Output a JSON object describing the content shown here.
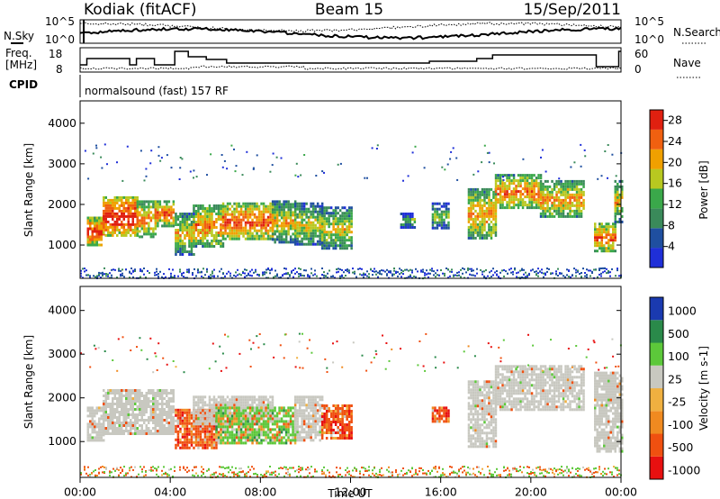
{
  "header": {
    "radar": "Kodiak (fitACF)",
    "beam": "Beam 15",
    "date": "15/Sep/2011"
  },
  "noise_panel": {
    "left_label": "N.Sky",
    "right_label": "N.Search",
    "left_ticks": [
      "10^5",
      "10^0"
    ],
    "right_ticks": [
      "10^5",
      "10^0"
    ]
  },
  "freq_panel": {
    "left_label_top": "Freq.",
    "left_label_unit": "[MHz]",
    "right_label": "Nave",
    "left_ticks": [
      "18",
      "8"
    ],
    "right_ticks": [
      "60",
      "0"
    ]
  },
  "cpid": {
    "label": "CPID",
    "text": "normalsound (fast) 157 RF"
  },
  "x_axis": {
    "label": "Time UT",
    "ticks": [
      "00:00",
      "04:00",
      "08:00",
      "12:00",
      "16:00",
      "20:00",
      "00:00"
    ]
  },
  "colors": {
    "power": [
      "#1f2fd8",
      "#1f4fa0",
      "#3a8a5a",
      "#3aa84a",
      "#b8c820",
      "#f0a000",
      "#f06010",
      "#e02010"
    ],
    "velocity": [
      "#e81010",
      "#f05010",
      "#f08a20",
      "#f0b040",
      "#c8c8c0",
      "#5cc83a",
      "#2a8a4a",
      "#1a3ab0"
    ],
    "ground_scatter": "#c8c8c0"
  },
  "chart_data": [
    {
      "type": "heatmap",
      "title": "",
      "ylabel": "Slant Range [km]",
      "ylim": [
        180,
        4550
      ],
      "yticks": [
        "1000",
        "2000",
        "3000",
        "4000"
      ],
      "colorbar": {
        "label": "Power [dB]",
        "ticks": [
          "4",
          "8",
          "12",
          "16",
          "20",
          "24",
          "28"
        ],
        "range": [
          0,
          30
        ]
      },
      "regions": [
        {
          "t": [
            0.3,
            1.0
          ],
          "r": [
            1000,
            1700
          ],
          "v": 22
        },
        {
          "t": [
            1.0,
            2.5
          ],
          "r": [
            1250,
            2200
          ],
          "v": 24
        },
        {
          "t": [
            2.5,
            3.3
          ],
          "r": [
            1200,
            2100
          ],
          "v": 18
        },
        {
          "t": [
            3.3,
            4.1
          ],
          "r": [
            1500,
            2100
          ],
          "v": 20
        },
        {
          "t": [
            4.2,
            5.0
          ],
          "r": [
            800,
            1800
          ],
          "v": 15
        },
        {
          "t": [
            5.0,
            6.3
          ],
          "r": [
            1000,
            2000
          ],
          "v": 18
        },
        {
          "t": [
            6.3,
            8.5
          ],
          "r": [
            1150,
            2050
          ],
          "v": 21
        },
        {
          "t": [
            8.5,
            9.5
          ],
          "r": [
            1100,
            2100
          ],
          "v": 15
        },
        {
          "t": [
            9.5,
            10.7
          ],
          "r": [
            1000,
            2050
          ],
          "v": 13
        },
        {
          "t": [
            10.7,
            12.0
          ],
          "r": [
            900,
            1950
          ],
          "v": 14
        },
        {
          "t": [
            14.2,
            14.8
          ],
          "r": [
            1450,
            1800
          ],
          "v": 9
        },
        {
          "t": [
            15.6,
            16.3
          ],
          "r": [
            1450,
            2050
          ],
          "v": 11
        },
        {
          "t": [
            17.2,
            18.4
          ],
          "r": [
            1150,
            2400
          ],
          "v": 17
        },
        {
          "t": [
            18.4,
            20.4
          ],
          "r": [
            1900,
            2750
          ],
          "v": 19
        },
        {
          "t": [
            20.4,
            22.3
          ],
          "r": [
            1700,
            2600
          ],
          "v": 17
        },
        {
          "t": [
            22.8,
            23.7
          ],
          "r": [
            850,
            1550
          ],
          "v": 20
        },
        {
          "t": [
            23.7,
            24.0
          ],
          "r": [
            1600,
            2600
          ],
          "v": 15
        }
      ]
    },
    {
      "type": "heatmap",
      "title": "",
      "ylabel": "Slant Range [km]",
      "ylim": [
        180,
        4550
      ],
      "yticks": [
        "1000",
        "2000",
        "3000",
        "4000"
      ],
      "colorbar": {
        "label": "Velocity [m s-1]",
        "ticks": [
          "1000",
          "500",
          "100",
          "25",
          "-25",
          "-100",
          "-500",
          "-1000"
        ],
        "range": [
          -1000,
          1000
        ]
      },
      "regions": [
        {
          "t": [
            0.3,
            1.0
          ],
          "r": [
            1000,
            1800
          ],
          "kind": "ground"
        },
        {
          "t": [
            1.0,
            4.1
          ],
          "r": [
            1200,
            2200
          ],
          "kind": "ground"
        },
        {
          "t": [
            4.2,
            6.0
          ],
          "r": [
            850,
            1750
          ],
          "kind": "ionosphere",
          "v": -250
        },
        {
          "t": [
            5.0,
            8.5
          ],
          "r": [
            1400,
            2050
          ],
          "kind": "ground"
        },
        {
          "t": [
            6.0,
            9.5
          ],
          "r": [
            950,
            1800
          ],
          "kind": "ionosphere",
          "v": 200
        },
        {
          "t": [
            9.5,
            10.7
          ],
          "r": [
            1000,
            2050
          ],
          "kind": "ground"
        },
        {
          "t": [
            10.7,
            12.0
          ],
          "r": [
            1100,
            1850
          ],
          "kind": "ionosphere",
          "v": -300
        },
        {
          "t": [
            15.6,
            16.3
          ],
          "r": [
            1450,
            1800
          ],
          "kind": "ionosphere",
          "v": -300
        },
        {
          "t": [
            17.2,
            18.4
          ],
          "r": [
            900,
            2400
          ],
          "kind": "ground"
        },
        {
          "t": [
            18.4,
            22.3
          ],
          "r": [
            1700,
            2750
          ],
          "kind": "ground"
        },
        {
          "t": [
            22.8,
            24.0
          ],
          "r": [
            800,
            2600
          ],
          "kind": "ground"
        }
      ]
    }
  ]
}
